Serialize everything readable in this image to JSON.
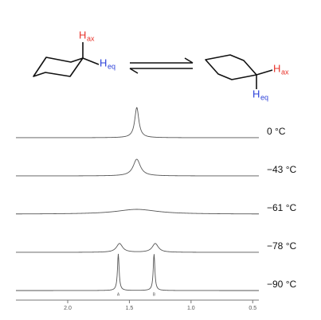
{
  "scheme": {
    "left": {
      "h_ax": {
        "symbol": "H",
        "subscript": "ax"
      },
      "h_eq": {
        "symbol": "H",
        "subscript": "eq"
      }
    },
    "right": {
      "h_ax": {
        "symbol": "H",
        "subscript": "ax"
      },
      "h_eq": {
        "symbol": "H",
        "subscript": "eq"
      }
    }
  },
  "chart_data": {
    "type": "nmr",
    "xlim": [
      2.42,
      0.45
    ],
    "xticks": [
      {
        "value": 2.0,
        "label": "2.0"
      },
      {
        "value": 1.5,
        "label": "1.5"
      },
      {
        "value": 1.0,
        "label": "1.0"
      },
      {
        "value": 0.5,
        "label": "0.5"
      }
    ],
    "color": "#555555",
    "spectra": [
      {
        "name": "0 °C",
        "peaks": [
          {
            "ppm": 1.44,
            "height": 38,
            "width": 0.02
          }
        ]
      },
      {
        "name": "−43 °C",
        "peaks": [
          {
            "ppm": 1.44,
            "height": 21,
            "width": 0.035
          }
        ]
      },
      {
        "name": "−61 °C",
        "peaks": [
          {
            "ppm": 1.44,
            "height": 6,
            "width": 0.2
          }
        ]
      },
      {
        "name": "−78 °C",
        "peaks": [
          {
            "ppm": 1.58,
            "height": 11,
            "width": 0.03
          },
          {
            "ppm": 1.29,
            "height": 11,
            "width": 0.03
          }
        ]
      },
      {
        "name": "−90 °C",
        "peaks": [
          {
            "ppm": 1.59,
            "height": 46,
            "width": 0.008,
            "label": "A"
          },
          {
            "ppm": 1.3,
            "height": 46,
            "width": 0.008,
            "label": "B"
          }
        ]
      }
    ]
  }
}
